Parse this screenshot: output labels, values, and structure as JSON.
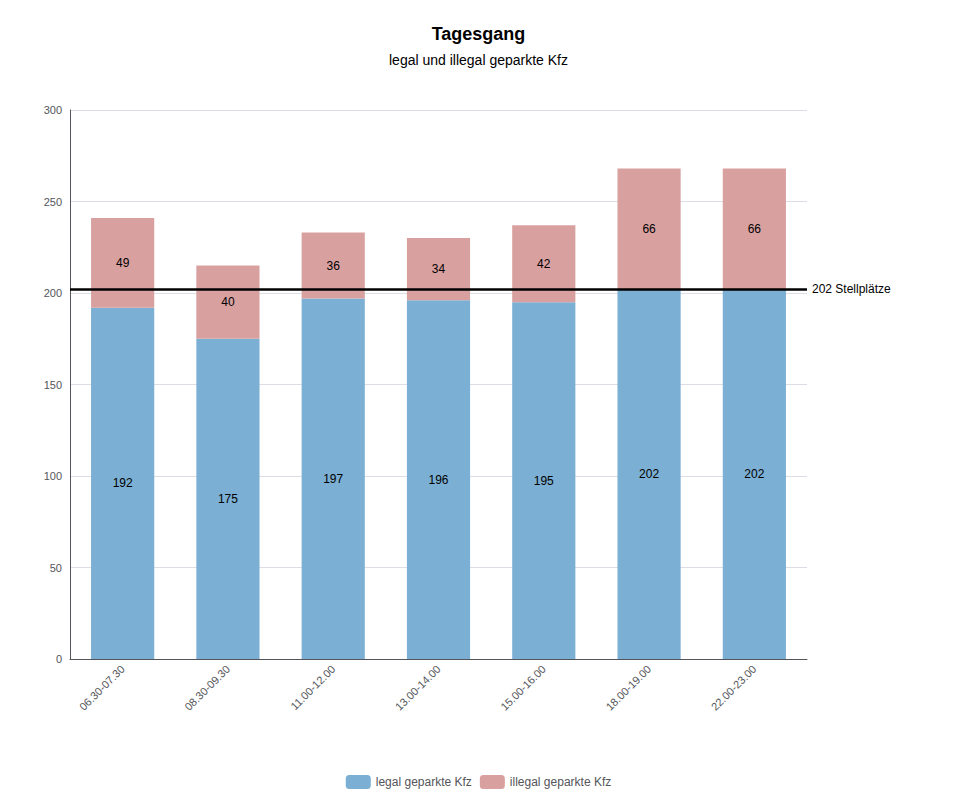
{
  "chart_data": {
    "type": "bar",
    "title": "Tagesgang",
    "subtitle": "legal und illegal geparkte Kfz",
    "categories": [
      "06.30-07.30",
      "08.30-09.30",
      "11.00-12.00",
      "13.00-14.00",
      "15.00-16.00",
      "18.00-19.00",
      "22.00-23.00"
    ],
    "series": [
      {
        "name": "legal geparkte Kfz",
        "color": "#7bafd4",
        "values": [
          192,
          175,
          197,
          196,
          195,
          202,
          202
        ]
      },
      {
        "name": "illegal geparkte Kfz",
        "color": "#d9a0a0",
        "values": [
          49,
          40,
          36,
          34,
          42,
          66,
          66
        ]
      }
    ],
    "stacked": true,
    "data_labels": true,
    "reference_lines": [
      {
        "value": 202,
        "label": "202 Stellplätze"
      }
    ],
    "ylim": [
      0,
      300
    ],
    "yticks": [
      0,
      50,
      100,
      150,
      200,
      250,
      300
    ],
    "grid": true,
    "legend": "bottom"
  }
}
